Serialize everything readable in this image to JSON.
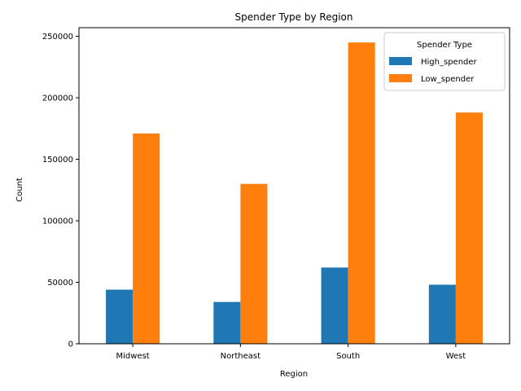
{
  "chart_data": {
    "type": "bar",
    "title": "Spender Type by Region",
    "xlabel": "Region",
    "ylabel": "Count",
    "categories": [
      "Midwest",
      "Northeast",
      "South",
      "West"
    ],
    "series": [
      {
        "name": "High_spender",
        "color": "#1f77b4",
        "values": [
          44000,
          34000,
          62000,
          48000
        ]
      },
      {
        "name": "Low_spender",
        "color": "#ff7f0e",
        "values": [
          171000,
          130000,
          245000,
          188000
        ]
      }
    ],
    "ylim": [
      0,
      257000
    ],
    "yticks": [
      0,
      50000,
      100000,
      150000,
      200000,
      250000
    ],
    "legend": {
      "title": "Spender Type",
      "position": "top-right"
    },
    "grid": false
  }
}
